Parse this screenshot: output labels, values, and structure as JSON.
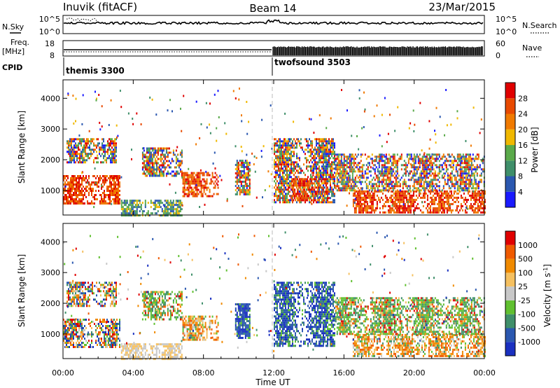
{
  "header": {
    "station": "Inuvik (fitACF)",
    "beam": "Beam 14",
    "date": "23/Mar/2015"
  },
  "top_panel_labels": {
    "nsky": "N.Sky",
    "nsky_ticks": [
      "10^5",
      "10^0"
    ],
    "nsearch": "N.Search",
    "nsearch_ticks": [
      "10^5",
      "10^0"
    ],
    "freq": "Freq.",
    "freq_unit": "[MHz]",
    "freq_ticks": [
      "18",
      "8"
    ],
    "nave": "Nave",
    "nave_ticks": [
      "60",
      "0"
    ],
    "cpid": "CPID"
  },
  "cpid_segments": [
    {
      "name": "themis 3300",
      "start_hour": 0
    },
    {
      "name": "twofsound 3503",
      "start_hour": 12
    }
  ],
  "colors": {
    "power_scale": [
      "#1a1aff",
      "#2b58b0",
      "#3f8f6a",
      "#5aaa4a",
      "#f0b800",
      "#f07a00",
      "#e84a00",
      "#e00000"
    ],
    "velocity_scale": [
      "#e00000",
      "#ef5a00",
      "#f08a00",
      "#f5c060",
      "#c8c8c8",
      "#60c030",
      "#3f8f6a",
      "#2b58b0",
      "#1a30c0"
    ]
  },
  "chart_data": [
    {
      "type": "heatmap",
      "name": "power",
      "xlabel": "",
      "ylabel": "Slant Range [km]",
      "ylim": [
        200,
        4600
      ],
      "xlim_hours": [
        0,
        24
      ],
      "yticks": [
        "1000",
        "2000",
        "3000",
        "4000"
      ],
      "colorbar": {
        "label": "Power [dB]",
        "ticks": [
          "4",
          "8",
          "12",
          "16",
          "20",
          "24",
          "28"
        ],
        "range": [
          0,
          32
        ]
      },
      "echo_regions": [
        {
          "t0": 0.0,
          "t1": 3.2,
          "r0": 600,
          "r1": 1500,
          "level": "high"
        },
        {
          "t0": 0.2,
          "t1": 3.0,
          "r0": 1900,
          "r1": 2700,
          "level": "mixed"
        },
        {
          "t0": 3.3,
          "t1": 6.8,
          "r0": 200,
          "r1": 700,
          "level": "low"
        },
        {
          "t0": 4.5,
          "t1": 6.8,
          "r0": 1500,
          "r1": 2400,
          "level": "mixed"
        },
        {
          "t0": 6.8,
          "t1": 8.8,
          "r0": 800,
          "r1": 1600,
          "level": "high"
        },
        {
          "t0": 9.8,
          "t1": 10.6,
          "r0": 900,
          "r1": 2000,
          "level": "mixed"
        },
        {
          "t0": 12.0,
          "t1": 15.5,
          "r0": 600,
          "r1": 2700,
          "level": "mixed"
        },
        {
          "t0": 13.0,
          "t1": 15.0,
          "r0": 700,
          "r1": 1400,
          "level": "high"
        },
        {
          "t0": 16.5,
          "t1": 24.0,
          "r0": 300,
          "r1": 1000,
          "level": "high"
        },
        {
          "t0": 15.5,
          "t1": 24.0,
          "r0": 1000,
          "r1": 2200,
          "level": "mixed"
        }
      ]
    },
    {
      "type": "heatmap",
      "name": "velocity",
      "xlabel": "Time UT",
      "ylabel": "Slant Range [km]",
      "ylim": [
        200,
        4600
      ],
      "xlim_hours": [
        0,
        24
      ],
      "xticks": [
        "00:00",
        "04:00",
        "08:00",
        "12:00",
        "16:00",
        "20:00",
        "00:00"
      ],
      "yticks": [
        "1000",
        "2000",
        "3000",
        "4000"
      ],
      "colorbar": {
        "label": "Velocity [m s-1]",
        "ticks": [
          "1000",
          "500",
          "100",
          "25",
          "-25",
          "-100",
          "-500",
          "-1000"
        ]
      },
      "echo_regions": [
        {
          "t0": 0.0,
          "t1": 3.2,
          "r0": 600,
          "r1": 1500,
          "level": "mixed"
        },
        {
          "t0": 0.2,
          "t1": 3.0,
          "r0": 1900,
          "r1": 2700,
          "level": "mixed"
        },
        {
          "t0": 3.3,
          "t1": 6.8,
          "r0": 200,
          "r1": 700,
          "level": "gray"
        },
        {
          "t0": 4.5,
          "t1": 6.8,
          "r0": 1500,
          "r1": 2400,
          "level": "green"
        },
        {
          "t0": 6.8,
          "t1": 8.8,
          "r0": 800,
          "r1": 1600,
          "level": "orange"
        },
        {
          "t0": 9.8,
          "t1": 10.6,
          "r0": 900,
          "r1": 2000,
          "level": "blue"
        },
        {
          "t0": 12.0,
          "t1": 15.5,
          "r0": 600,
          "r1": 2700,
          "level": "blue"
        },
        {
          "t0": 16.5,
          "t1": 24.0,
          "r0": 300,
          "r1": 1000,
          "level": "orange"
        },
        {
          "t0": 15.5,
          "t1": 24.0,
          "r0": 1000,
          "r1": 2200,
          "level": "green"
        }
      ]
    }
  ]
}
